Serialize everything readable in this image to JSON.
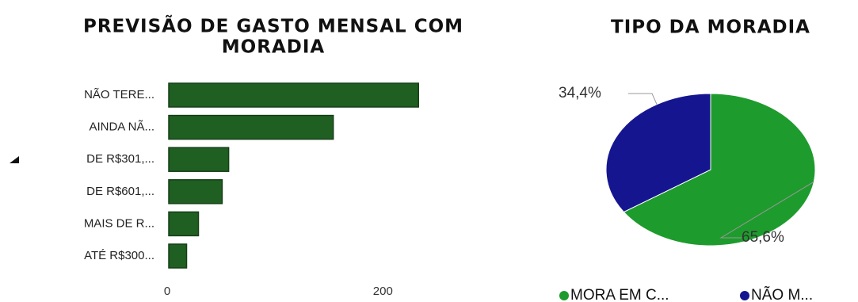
{
  "charts": [
    {
      "type": "bar",
      "title_lines": [
        "PREVISÃO DE GASTO MENSAL COM",
        "MORADIA"
      ],
      "categories": [
        "NÃO TERE...",
        "AINDA NÃ...",
        "DE R$301,...",
        "DE R$601,...",
        "MAIS DE R...",
        "ATÉ R$300..."
      ],
      "values": [
        233,
        154,
        57,
        51,
        29,
        18
      ],
      "color": "#1f5f22",
      "xlim": [
        0,
        260
      ],
      "xticks": [
        0,
        200
      ]
    },
    {
      "type": "pie",
      "title": "TIPO DA MORADIA",
      "categories": [
        "MORA EM C...",
        "NÃO M..."
      ],
      "values": [
        65.6,
        34.4
      ],
      "value_labels": [
        "65,6%",
        "34,4%"
      ],
      "colors": [
        "#1e9b2d",
        "#15168f"
      ]
    }
  ]
}
